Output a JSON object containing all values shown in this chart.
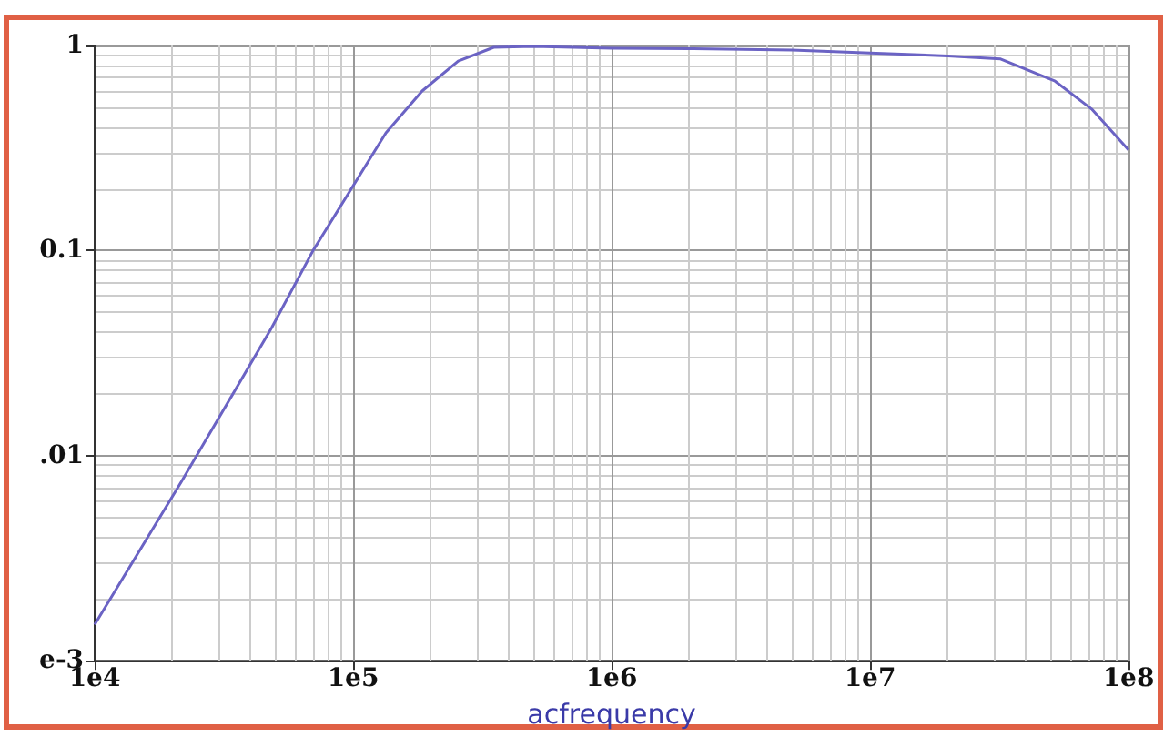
{
  "chart_data": {
    "type": "line",
    "xlabel": "acfrequency",
    "log": "xy",
    "grid": true,
    "marker": "none",
    "line_style": "solid",
    "xlim": [
      10000,
      100000000
    ],
    "ylim": [
      0.001,
      1
    ],
    "xticks": [
      {
        "value": 10000,
        "label": "1e4"
      },
      {
        "value": 100000,
        "label": "1e5"
      },
      {
        "value": 1000000,
        "label": "1e6"
      },
      {
        "value": 10000000,
        "label": "1e7"
      },
      {
        "value": 100000000,
        "label": "1e8"
      }
    ],
    "yticks": [
      {
        "value": 0.001,
        "label": "e-3"
      },
      {
        "value": 0.01,
        "label": ".01"
      },
      0.1,
      1
    ],
    "series": [
      {
        "color": "#6b63c4",
        "x": [
          10000,
          21700,
          48400,
          70000,
          134000,
          185000,
          255000,
          350000,
          500000,
          1000000,
          2000000,
          5000000,
          10000000,
          20000000,
          32000000,
          52000000,
          72000000,
          100000000
        ],
        "values": [
          0.0015,
          0.0075,
          0.042,
          0.1,
          0.375,
          0.6,
          0.84,
          0.98,
          0.99,
          0.97,
          0.965,
          0.95,
          0.92,
          0.89,
          0.86,
          0.67,
          0.49,
          0.31
        ]
      }
    ]
  }
}
